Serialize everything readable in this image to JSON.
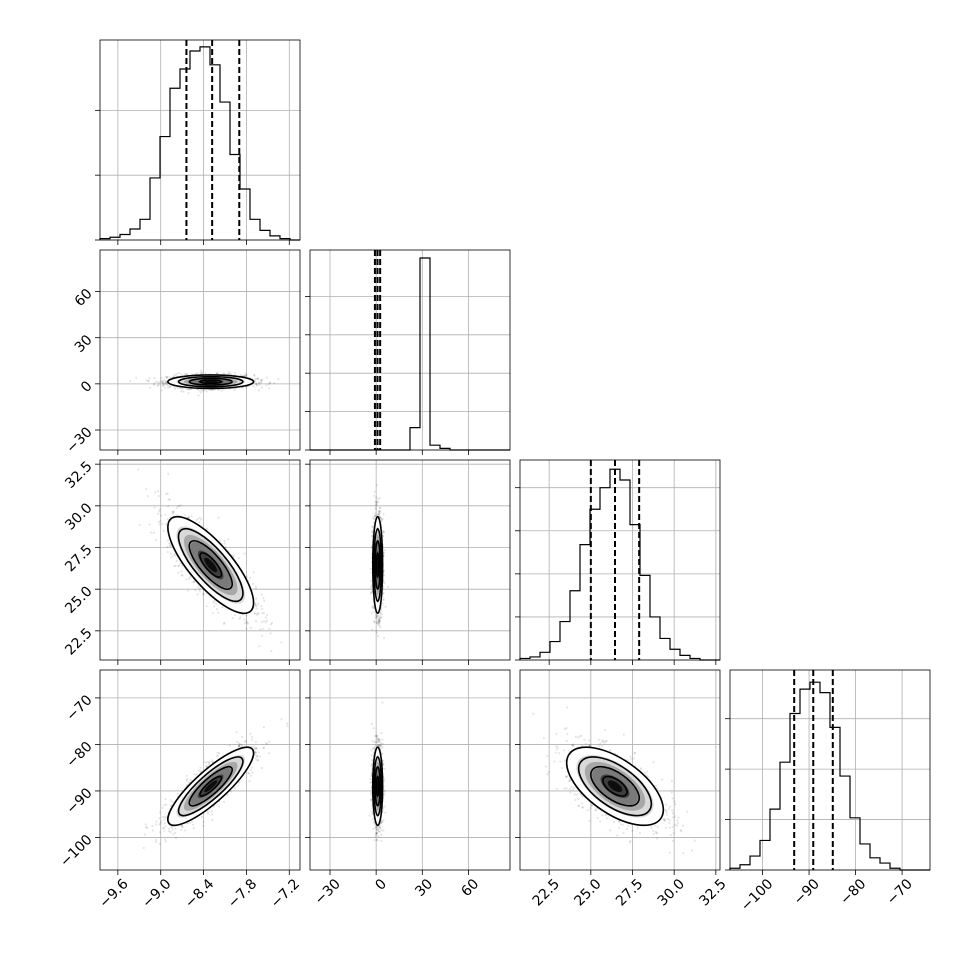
{
  "chart_data": {
    "type": "corner",
    "parameters": [
      {
        "range": [
          -9.85,
          -7.05
        ],
        "ticks": [
          -9.6,
          -9.0,
          -8.4,
          -7.8,
          -7.2
        ],
        "tick_labels": [
          "−9.6",
          "−9.0",
          "−8.4",
          "−7.8",
          "−7.2"
        ],
        "quantiles": [
          -8.64,
          -8.28,
          -7.9
        ],
        "histogram": [
          1,
          2,
          4,
          8,
          15,
          45,
          75,
          110,
          124,
          137,
          140,
          127,
          100,
          62,
          37,
          15,
          7,
          3,
          1,
          0
        ],
        "hist_ylim": [
          0,
          145
        ],
        "hist_yticks": [
          0,
          47,
          94
        ]
      },
      {
        "range": [
          -43,
          87
        ],
        "ticks": [
          -30,
          0,
          30,
          60
        ],
        "tick_labels": [
          "−30",
          "0",
          "30",
          "60"
        ],
        "quantiles": [
          -0.8,
          0.9,
          2.6
        ],
        "histogram": [
          0,
          0,
          0,
          0,
          0,
          0,
          0,
          0,
          0,
          0,
          14,
          120,
          3,
          1,
          0,
          0,
          0,
          0,
          0,
          0
        ],
        "hist_ylim": [
          0,
          125
        ],
        "hist_yticks": [
          0,
          24,
          48,
          72,
          96
        ]
      },
      {
        "range": [
          20.75,
          32.75
        ],
        "ticks": [
          22.5,
          25.0,
          27.5,
          30.0,
          32.5
        ],
        "tick_labels": [
          "22.5",
          "25.0",
          "27.5",
          "30.0",
          "32.5"
        ],
        "quantiles": [
          25.0,
          26.45,
          27.9
        ],
        "histogram": [
          1,
          2,
          5,
          12,
          25,
          45,
          75,
          98,
          112,
          124,
          117,
          88,
          55,
          28,
          14,
          7,
          3,
          1,
          0,
          0
        ],
        "hist_ylim": [
          0,
          130
        ],
        "hist_yticks": [
          0,
          28,
          56,
          84,
          112
        ]
      },
      {
        "range": [
          -107,
          -64
        ],
        "ticks": [
          -100,
          -90,
          -80,
          -70
        ],
        "tick_labels": [
          "−100",
          "−90",
          "−80",
          "−70"
        ],
        "quantiles": [
          -93.2,
          -89.1,
          -84.9
        ],
        "histogram": [
          1,
          3,
          8,
          17,
          35,
          62,
          90,
          104,
          108,
          102,
          82,
          54,
          30,
          15,
          7,
          4,
          1,
          0,
          0,
          0
        ],
        "hist_ylim": [
          0,
          115
        ],
        "hist_yticks": [
          0,
          29,
          58,
          87
        ]
      }
    ],
    "pairs": [
      {
        "row": 1,
        "col": 0,
        "mean": [
          -8.3,
          1.4
        ],
        "sd": [
          0.3,
          2.2
        ],
        "rho": 0.0
      },
      {
        "row": 2,
        "col": 0,
        "mean": [
          -8.3,
          26.45
        ],
        "sd": [
          0.3,
          1.45
        ],
        "rho": -0.78
      },
      {
        "row": 2,
        "col": 1,
        "mean": [
          1.0,
          26.45
        ],
        "sd": [
          1.6,
          1.45
        ],
        "rho": 0.0
      },
      {
        "row": 3,
        "col": 0,
        "mean": [
          -8.3,
          -89.0
        ],
        "sd": [
          0.3,
          4.2
        ],
        "rho": 0.85
      },
      {
        "row": 3,
        "col": 1,
        "mean": [
          1.0,
          -89.0
        ],
        "sd": [
          1.6,
          4.2
        ],
        "rho": 0.0
      },
      {
        "row": 3,
        "col": 2,
        "mean": [
          26.45,
          -89.0
        ],
        "sd": [
          1.45,
          4.2
        ],
        "rho": -0.6
      }
    ],
    "contour_levels": [
      0.5,
      1.0,
      1.5,
      2.0
    ],
    "grid": true
  }
}
